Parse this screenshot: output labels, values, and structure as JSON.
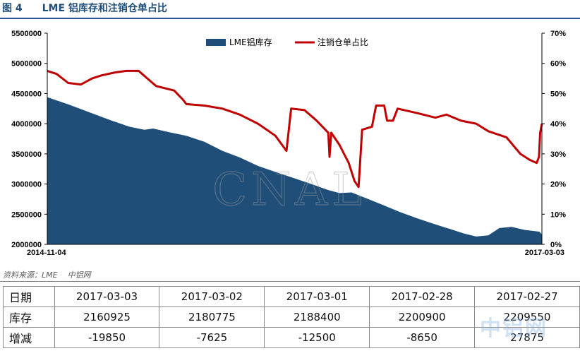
{
  "figure": {
    "number": "图 4",
    "title": "LME 铝库存和注销仓单占比"
  },
  "chart_data": {
    "type": "area",
    "legend_position": "top-center",
    "grid": false,
    "watermark": "CNAL",
    "colors": {
      "inventory": "#1f4e79",
      "cancelled_ratio": "#c00000"
    },
    "x_start": "2014-11-04",
    "x_end": "2017-03-03",
    "y_left": {
      "min": 2000000,
      "max": 5500000,
      "ticks": [
        "2000000",
        "2500000",
        "3000000",
        "3500000",
        "4000000",
        "4500000",
        "5000000",
        "5500000"
      ]
    },
    "y_right": {
      "min": 0,
      "max": 70,
      "ticks": [
        "0%",
        "10%",
        "20%",
        "30%",
        "40%",
        "50%",
        "60%",
        "70%"
      ]
    },
    "series": [
      {
        "name": "LME铝库存",
        "type": "area",
        "points": [
          [
            "2014-11-04",
            4440000
          ],
          [
            "2014-12-10",
            4320000
          ],
          [
            "2015-01-15",
            4190000
          ],
          [
            "2015-02-20",
            4060000
          ],
          [
            "2015-03-25",
            3950000
          ],
          [
            "2015-04-20",
            3900000
          ],
          [
            "2015-05-05",
            3920000
          ],
          [
            "2015-06-01",
            3860000
          ],
          [
            "2015-07-01",
            3800000
          ],
          [
            "2015-08-01",
            3700000
          ],
          [
            "2015-09-01",
            3550000
          ],
          [
            "2015-10-01",
            3440000
          ],
          [
            "2015-11-01",
            3300000
          ],
          [
            "2015-12-01",
            3200000
          ],
          [
            "2016-01-01",
            3100000
          ],
          [
            "2016-02-01",
            3000000
          ],
          [
            "2016-03-01",
            2900000
          ],
          [
            "2016-03-20",
            2850000
          ],
          [
            "2016-04-10",
            2860000
          ],
          [
            "2016-05-01",
            2780000
          ],
          [
            "2016-06-01",
            2660000
          ],
          [
            "2016-07-01",
            2540000
          ],
          [
            "2016-08-01",
            2430000
          ],
          [
            "2016-09-01",
            2330000
          ],
          [
            "2016-10-01",
            2240000
          ],
          [
            "2016-10-20",
            2180000
          ],
          [
            "2016-11-10",
            2130000
          ],
          [
            "2016-12-01",
            2150000
          ],
          [
            "2016-12-20",
            2270000
          ],
          [
            "2017-01-10",
            2290000
          ],
          [
            "2017-02-01",
            2240000
          ],
          [
            "2017-02-27",
            2209550
          ],
          [
            "2017-03-03",
            2160925
          ]
        ]
      },
      {
        "name": "注销仓单占比",
        "type": "line",
        "axis": "right",
        "points": [
          [
            "2014-11-04",
            57.5
          ],
          [
            "2014-11-20",
            56.5
          ],
          [
            "2014-12-10",
            53.5
          ],
          [
            "2015-01-01",
            53
          ],
          [
            "2015-01-20",
            55
          ],
          [
            "2015-02-05",
            56
          ],
          [
            "2015-03-01",
            57
          ],
          [
            "2015-03-20",
            57.5
          ],
          [
            "2015-04-10",
            57.5
          ],
          [
            "2015-04-25",
            55
          ],
          [
            "2015-05-10",
            52.5
          ],
          [
            "2015-06-10",
            51
          ],
          [
            "2015-06-25",
            48
          ],
          [
            "2015-07-01",
            46.5
          ],
          [
            "2015-08-01",
            46
          ],
          [
            "2015-09-01",
            45
          ],
          [
            "2015-10-01",
            43
          ],
          [
            "2015-11-01",
            40
          ],
          [
            "2015-12-01",
            36
          ],
          [
            "2015-12-20",
            31
          ],
          [
            "2015-12-28",
            45
          ],
          [
            "2016-01-20",
            44.5
          ],
          [
            "2016-02-10",
            41
          ],
          [
            "2016-03-01",
            37
          ],
          [
            "2016-03-03",
            29
          ],
          [
            "2016-03-06",
            37
          ],
          [
            "2016-03-20",
            33
          ],
          [
            "2016-04-05",
            27
          ],
          [
            "2016-04-15",
            21
          ],
          [
            "2016-04-22",
            19
          ],
          [
            "2016-04-28",
            38
          ],
          [
            "2016-05-15",
            39
          ],
          [
            "2016-05-22",
            46
          ],
          [
            "2016-06-05",
            46
          ],
          [
            "2016-06-10",
            41
          ],
          [
            "2016-06-20",
            41
          ],
          [
            "2016-06-28",
            45
          ],
          [
            "2016-08-01",
            43.5
          ],
          [
            "2016-09-01",
            42
          ],
          [
            "2016-09-20",
            43
          ],
          [
            "2016-10-15",
            41
          ],
          [
            "2016-11-10",
            40
          ],
          [
            "2016-12-01",
            37.5
          ],
          [
            "2017-01-01",
            35.5
          ],
          [
            "2017-01-25",
            30
          ],
          [
            "2017-02-10",
            28
          ],
          [
            "2017-02-22",
            27
          ],
          [
            "2017-02-26",
            29
          ],
          [
            "2017-02-28",
            37
          ],
          [
            "2017-03-03",
            40
          ]
        ]
      }
    ]
  },
  "source": {
    "label": "资料来源：LME",
    "brand": "中铝网"
  },
  "table": {
    "rows": [
      {
        "label": "日期",
        "cells": [
          "2017-03-03",
          "2017-03-02",
          "2017-03-01",
          "2017-02-28",
          "2017-02-27"
        ]
      },
      {
        "label": "库存",
        "cells": [
          "2160925",
          "2180775",
          "2188400",
          "2200900",
          "2209550"
        ]
      },
      {
        "label": "增减",
        "cells": [
          "-19850",
          "-7625",
          "-12500",
          "-8650",
          "27875"
        ]
      }
    ]
  }
}
